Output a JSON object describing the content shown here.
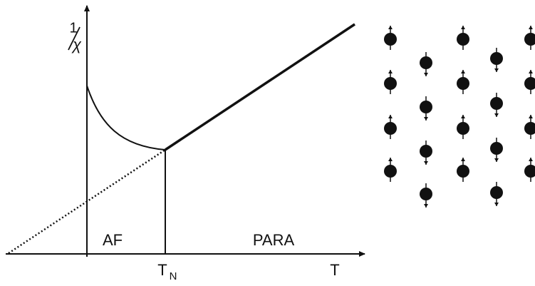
{
  "y_axis": {
    "label": {
      "numerator": "1",
      "denominator": "χ"
    }
  },
  "x_axis": {
    "label": "T"
  },
  "transition": {
    "symbol": "T",
    "subscript": "N"
  },
  "regions": [
    "AF",
    "PARA"
  ]
}
